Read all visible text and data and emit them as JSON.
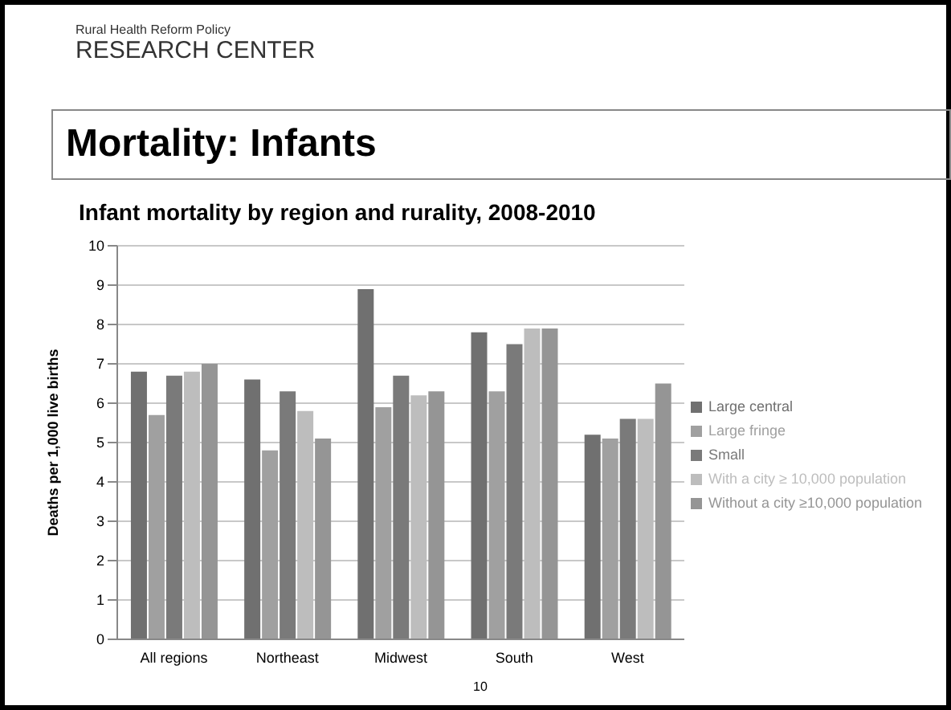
{
  "chart_data": {
    "type": "bar",
    "title": "Mortality: Infants",
    "subtitle": "Infant mortality by region and rurality, 2008-2010",
    "ylabel": "Deaths per 1,000 live births",
    "annotations": [
      "Rural Health Reform Policy",
      "RESEARCH CENTER",
      "10"
    ],
    "categories": [
      "All regions",
      "Northeast",
      "Midwest",
      "South",
      "West"
    ],
    "series": [
      {
        "name": "Large central",
        "color": "#707070",
        "values": [
          6.8,
          6.6,
          8.9,
          7.8,
          5.2
        ]
      },
      {
        "name": "Large fringe",
        "color": "#a0a0a0",
        "values": [
          5.7,
          4.8,
          5.9,
          6.3,
          5.1
        ]
      },
      {
        "name": "Small",
        "color": "#7a7a7a",
        "values": [
          6.7,
          6.3,
          6.7,
          7.5,
          5.6
        ]
      },
      {
        "name": "With a city ≥ 10,000 population",
        "color": "#bdbdbd",
        "values": [
          6.8,
          5.8,
          6.2,
          7.9,
          5.6
        ]
      },
      {
        "name": "Without a city ≥10,000 population",
        "color": "#959595",
        "values": [
          7.0,
          5.1,
          6.3,
          7.9,
          6.5
        ]
      }
    ],
    "ylim": [
      0,
      10
    ],
    "yticks": [
      0,
      1,
      2,
      3,
      4,
      5,
      6,
      7,
      8,
      9,
      10
    ],
    "grid": "y",
    "legend": "right"
  }
}
